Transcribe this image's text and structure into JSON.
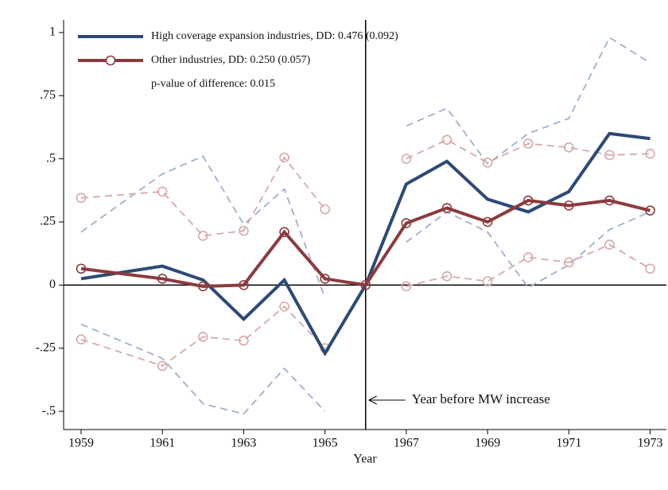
{
  "chart_data": {
    "type": "line",
    "x_label": "Year",
    "xlim": [
      1958.57,
      1973.4
    ],
    "ylim": [
      -0.572,
      1.05
    ],
    "xticks": [
      1959,
      1961,
      1963,
      1965,
      1967,
      1969,
      1971,
      1973
    ],
    "yticks": [
      1,
      {
        "value": 0.75,
        "label": ".75"
      },
      {
        "value": 0.5,
        "label": ".5"
      },
      {
        "value": 0.25,
        "label": ".25"
      },
      0,
      {
        "value": -0.25,
        "label": "-.25"
      },
      {
        "value": -0.5,
        "label": "-.5"
      }
    ],
    "vline": 1966,
    "hline": 0,
    "annotations": [
      "p-value of difference: 0.015",
      "Year before MW increase"
    ],
    "series": [
      {
        "color": "#9eb0cc",
        "dash": true,
        "x": [
          1959,
          1961,
          1962,
          1963,
          1964,
          1965,
          1966,
          1967,
          1968,
          1969,
          1970,
          1971,
          1972,
          1973
        ],
        "values": [
          0.21,
          0.44,
          0.51,
          0.24,
          0.38,
          -0.05,
          null,
          0.63,
          0.7,
          0.48,
          0.6,
          0.66,
          0.98,
          0.88
        ]
      },
      {
        "color": "#9eb0cc",
        "dash": true,
        "x": [
          1959,
          1961,
          1962,
          1963,
          1964,
          1965,
          1966,
          1967,
          1968,
          1969,
          1970,
          1971,
          1972,
          1973
        ],
        "values": [
          -0.155,
          -0.29,
          -0.47,
          -0.51,
          -0.33,
          -0.5,
          null,
          0.17,
          0.29,
          0.21,
          -0.01,
          0.08,
          0.22,
          0.29
        ]
      },
      {
        "color": "#d6a9a9",
        "dash": true,
        "marker": "circle",
        "x": [
          1959,
          1961,
          1962,
          1963,
          1964,
          1965,
          1966,
          1967,
          1968,
          1969,
          1970,
          1971,
          1972,
          1973
        ],
        "values": [
          0.345,
          0.37,
          0.195,
          0.215,
          0.505,
          0.3,
          null,
          0.5,
          0.575,
          0.485,
          0.56,
          0.545,
          0.515,
          0.52
        ]
      },
      {
        "color": "#d6a9a9",
        "dash": true,
        "marker": "circle",
        "x": [
          1959,
          1961,
          1962,
          1963,
          1964,
          1965,
          1966,
          1967,
          1968,
          1969,
          1970,
          1971,
          1972,
          1973
        ],
        "values": [
          -0.215,
          -0.32,
          -0.205,
          -0.22,
          -0.085,
          -0.25,
          null,
          -0.005,
          0.035,
          0.015,
          0.11,
          0.09,
          0.16,
          0.065
        ]
      },
      {
        "name": "High coverage expansion industries, DD: 0.476 (0.092)",
        "color": "#2c4a74",
        "x": [
          1959,
          1961,
          1962,
          1963,
          1964,
          1965,
          1966,
          1967,
          1968,
          1969,
          1970,
          1971,
          1972,
          1973
        ],
        "values": [
          0.025,
          0.075,
          0.02,
          -0.135,
          0.02,
          -0.27,
          0,
          0.4,
          0.49,
          0.34,
          0.29,
          0.37,
          0.6,
          0.58
        ]
      },
      {
        "name": "Other industries, DD: 0.250 (0.057)",
        "color": "#8b3b3e",
        "marker": "circle",
        "x": [
          1959,
          1961,
          1962,
          1963,
          1964,
          1965,
          1966,
          1967,
          1968,
          1969,
          1970,
          1971,
          1972,
          1973
        ],
        "values": [
          0.065,
          0.025,
          -0.005,
          0,
          0.21,
          0.025,
          0,
          0.245,
          0.305,
          0.25,
          0.335,
          0.315,
          0.335,
          0.295
        ]
      }
    ]
  }
}
